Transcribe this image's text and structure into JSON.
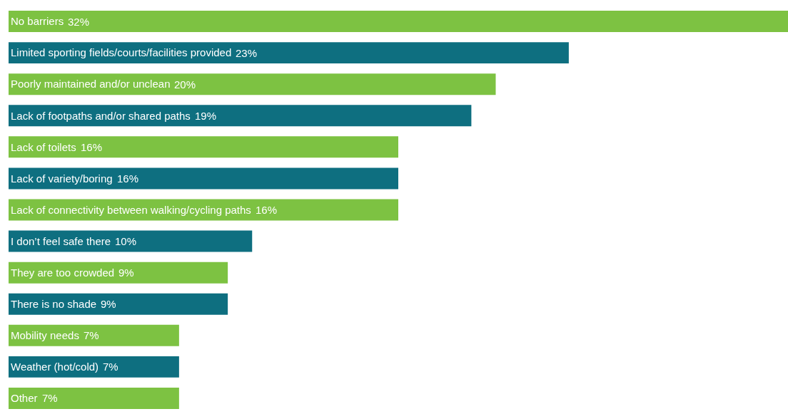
{
  "chart_data": {
    "type": "bar",
    "orientation": "horizontal",
    "categories": [
      "No barriers",
      "Limited sporting fields/courts/facilities provided",
      "Poorly maintained and/or unclean",
      "Lack of footpaths and/or shared paths",
      "Lack of toilets",
      "Lack of variety/boring",
      "Lack of connectivity between walking/cycling paths",
      "I don’t feel safe there",
      "They are too crowded",
      "There is no shade",
      "Mobility needs",
      "Weather (hot/cold)",
      "Other"
    ],
    "values": [
      32,
      23,
      20,
      19,
      16,
      16,
      16,
      10,
      9,
      9,
      7,
      7,
      7
    ],
    "value_labels": [
      "32%",
      "23%",
      "20%",
      "19%",
      "16%",
      "16%",
      "16%",
      "10%",
      "9%",
      "9%",
      "7%",
      "7%",
      "7%"
    ],
    "colors": [
      "#7dc242",
      "#0e6f80",
      "#7dc242",
      "#0e6f80",
      "#7dc242",
      "#0e6f80",
      "#7dc242",
      "#0e6f80",
      "#7dc242",
      "#0e6f80",
      "#7dc242",
      "#0e6f80",
      "#7dc242"
    ],
    "tick_labels": "y"
  }
}
